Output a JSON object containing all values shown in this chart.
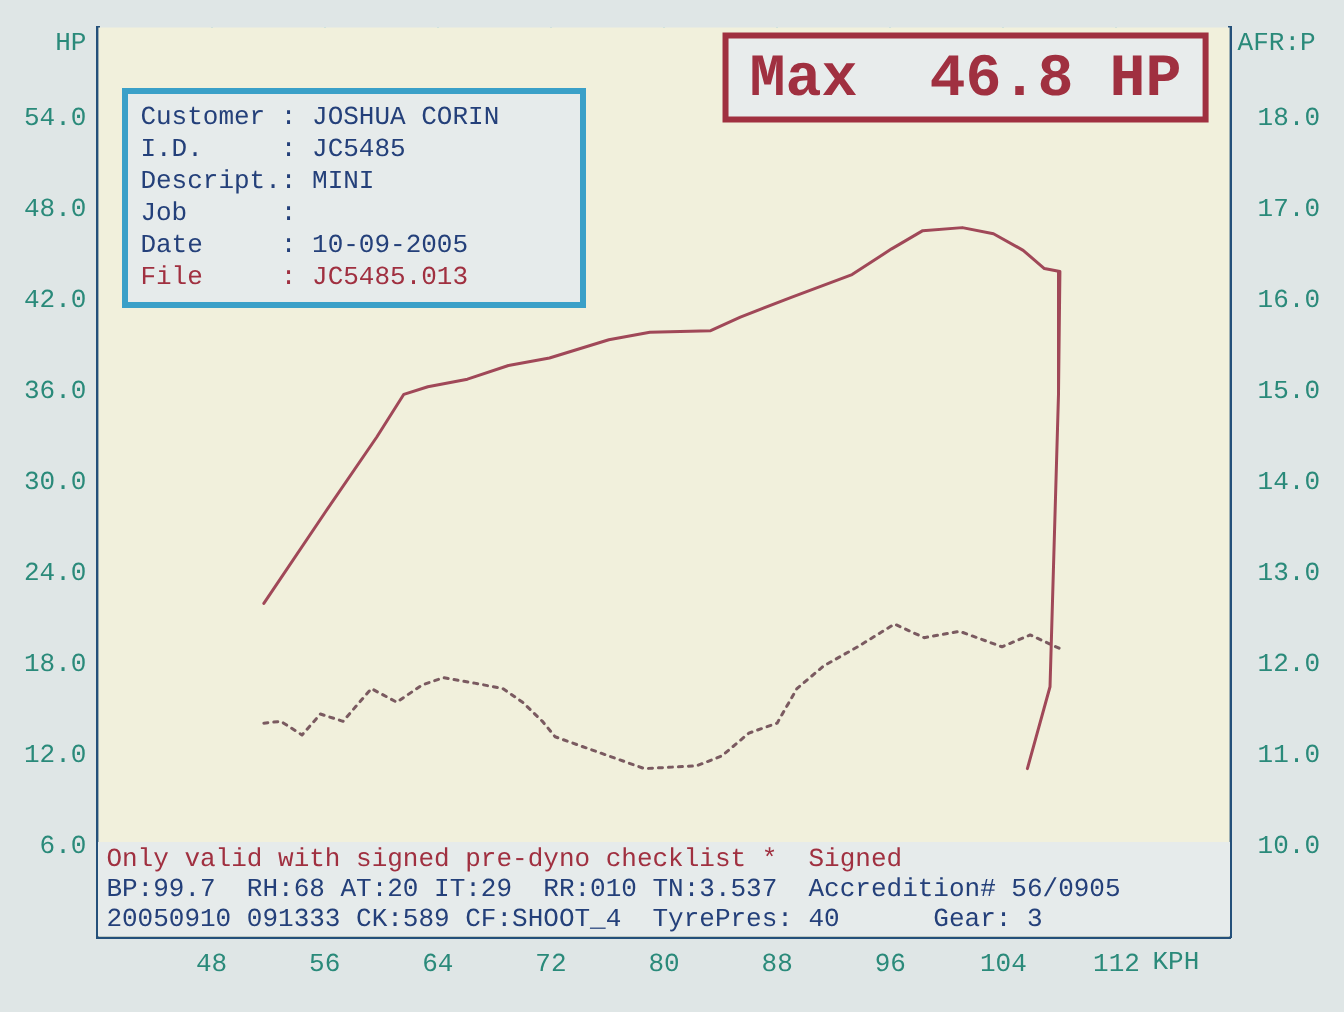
{
  "chart_data": {
    "type": "line",
    "title": "Max  46.8 HP",
    "xlabel": "KPH",
    "ylabel": "HP",
    "y2label": "AFR:P",
    "xlim": [
      40,
      120
    ],
    "xticks": [
      48,
      56,
      64,
      72,
      80,
      88,
      96,
      104,
      112
    ],
    "ylim": [
      0,
      60
    ],
    "yticks": [
      {
        "value": 6,
        "label": "6.0"
      },
      {
        "value": 12,
        "label": "12.0"
      },
      {
        "value": 18,
        "label": "18.0"
      },
      {
        "value": 24,
        "label": "24.0"
      },
      {
        "value": 30,
        "label": "30.0"
      },
      {
        "value": 36,
        "label": "36.0"
      },
      {
        "value": 42,
        "label": "42.0"
      },
      {
        "value": 48,
        "label": "48.0"
      },
      {
        "value": 54,
        "label": "54.0"
      }
    ],
    "y2lim": [
      9,
      19
    ],
    "y2ticks": [
      {
        "value": 10,
        "label": "10.0"
      },
      {
        "value": 11,
        "label": "11.0"
      },
      {
        "value": 12,
        "label": "12.0"
      },
      {
        "value": 13,
        "label": "13.0"
      },
      {
        "value": 14,
        "label": "14.0"
      },
      {
        "value": 15,
        "label": "15.0"
      },
      {
        "value": 16,
        "label": "16.0"
      },
      {
        "value": 17,
        "label": "17.0"
      },
      {
        "value": 18,
        "label": "18.0"
      }
    ],
    "grid": true,
    "legend": false,
    "marker": "none",
    "series": [
      {
        "color": "#a04858",
        "line_style": "solid",
        "x": [
          51.7,
          56.1,
          59.7,
          61.6,
          63.3,
          66.1,
          69,
          71.9,
          76.1,
          79,
          83.3,
          85.4,
          89,
          93.3,
          96.1,
          98.3,
          101.1,
          103.3,
          105.4,
          106.9,
          108,
          107.9,
          107.3,
          105.7
        ],
        "values": [
          22.0,
          28.1,
          33.0,
          35.8,
          36.3,
          36.8,
          37.7,
          38.2,
          39.4,
          39.9,
          40.0,
          40.9,
          42.2,
          43.7,
          45.4,
          46.6,
          46.8,
          46.4,
          45.3,
          44.1,
          43.9,
          35.8,
          16.5,
          11.1
        ]
      },
      {
        "color": "#7a5a60",
        "line_style": "dotted",
        "axis": "y2",
        "x": [
          51.7,
          52.9,
          54.4,
          55.7,
          57.3,
          59.3,
          61.1,
          62.9,
          64.4,
          66.6,
          68.6,
          70,
          71.4,
          72.3,
          78.6,
          82.3,
          84.1,
          86,
          88,
          89.4,
          91.3,
          93.7,
          96.3,
          98.4,
          100.9,
          103.9,
          105.9,
          108
        ],
        "values": [
          11.35,
          11.37,
          11.22,
          11.45,
          11.37,
          11.73,
          11.58,
          11.77,
          11.85,
          11.79,
          11.73,
          11.58,
          11.37,
          11.2,
          10.85,
          10.88,
          10.99,
          11.24,
          11.35,
          11.73,
          11.98,
          12.19,
          12.44,
          12.29,
          12.36,
          12.19,
          12.32,
          12.17
        ]
      }
    ],
    "annotations": [
      "Customer : JOSHUA CORIN",
      "I.D.     : JC5485",
      "Descript.: MINI",
      "Job      :",
      "Date     : 10-09-2005",
      "File     : JC5485.013",
      "Only valid with signed pre-dyno checklist *  Signed",
      "BP:99.7  RH:68 AT:20 IT:29  RR:010 TN:3.537  Accredition# 56/0905",
      "20050910 091333 CK:589 CF:SHOOT_4  TyrePres: 40      Gear: 3"
    ]
  }
}
